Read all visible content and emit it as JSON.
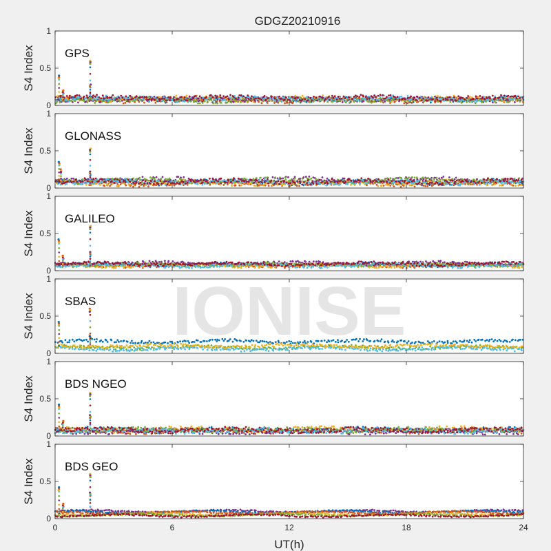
{
  "figure": {
    "title": "GDGZ20210916",
    "xlabel": "UT(h)",
    "ylabel": "S4 Index",
    "watermark": "IONISE",
    "xticks": [
      "0",
      "6",
      "12",
      "18",
      "24"
    ],
    "yticks": [
      "0",
      "0.5",
      "1"
    ]
  },
  "colors": {
    "background": "#f0f0f0",
    "axes_bg": "#ffffff",
    "axis_line": "#262626",
    "series": [
      "#0072BD",
      "#D95319",
      "#EDB120",
      "#7E2F8E",
      "#77AC30",
      "#4DBEEE",
      "#A2142F"
    ]
  },
  "chart_data": [
    {
      "type": "scatter",
      "panel": "GPS",
      "xlim": [
        0,
        24
      ],
      "ylim": [
        0,
        1
      ],
      "baseline": 0.07,
      "spread": 0.03,
      "spikes": [
        {
          "x": 0.2,
          "y": 0.4
        },
        {
          "x": 0.4,
          "y": 0.2
        },
        {
          "x": 1.8,
          "y": 0.6
        },
        {
          "x": 1.8,
          "y": 0.28
        }
      ],
      "series": [
        {
          "level": 0.08,
          "color_index": 0
        },
        {
          "level": 0.07,
          "color_index": 1
        },
        {
          "level": 0.09,
          "color_index": 2
        },
        {
          "level": 0.08,
          "color_index": 3
        },
        {
          "level": 0.07,
          "color_index": 4
        },
        {
          "level": 0.09,
          "color_index": 5
        },
        {
          "level": 0.1,
          "color_index": 6
        }
      ]
    },
    {
      "type": "scatter",
      "panel": "GLONASS",
      "xlim": [
        0,
        24
      ],
      "ylim": [
        0,
        1
      ],
      "baseline": 0.07,
      "spread": 0.03,
      "spikes": [
        {
          "x": 0.2,
          "y": 0.35
        },
        {
          "x": 0.3,
          "y": 0.25
        },
        {
          "x": 1.8,
          "y": 0.53
        },
        {
          "x": 1.8,
          "y": 0.22
        }
      ],
      "series": [
        {
          "level": 0.08,
          "color_index": 0
        },
        {
          "level": 0.06,
          "color_index": 1
        },
        {
          "level": 0.07,
          "color_index": 2
        },
        {
          "level": 0.11,
          "color_index": 3
        },
        {
          "level": 0.1,
          "color_index": 4
        },
        {
          "level": 0.08,
          "color_index": 5
        },
        {
          "level": 0.09,
          "color_index": 6
        }
      ]
    },
    {
      "type": "scatter",
      "panel": "GALILEO",
      "xlim": [
        0,
        24
      ],
      "ylim": [
        0,
        1
      ],
      "baseline": 0.07,
      "spread": 0.02,
      "spikes": [
        {
          "x": 0.2,
          "y": 0.42
        },
        {
          "x": 0.4,
          "y": 0.2
        },
        {
          "x": 1.8,
          "y": 0.6
        },
        {
          "x": 1.8,
          "y": 0.25
        }
      ],
      "series": [
        {
          "level": 0.08,
          "color_index": 0
        },
        {
          "level": 0.07,
          "color_index": 1
        },
        {
          "level": 0.07,
          "color_index": 2
        },
        {
          "level": 0.1,
          "color_index": 3
        },
        {
          "level": 0.08,
          "color_index": 4
        },
        {
          "level": 0.07,
          "color_index": 5
        },
        {
          "level": 0.09,
          "color_index": 6
        }
      ]
    },
    {
      "type": "scatter",
      "panel": "SBAS",
      "xlim": [
        0,
        24
      ],
      "ylim": [
        0,
        1
      ],
      "baseline": 0.1,
      "spread": 0.02,
      "spikes": [
        {
          "x": 0.2,
          "y": 0.42
        },
        {
          "x": 1.8,
          "y": 0.6
        },
        {
          "x": 1.8,
          "y": 0.25
        }
      ],
      "series": [
        {
          "level": 0.16,
          "color_index": 0
        },
        {
          "level": 0.08,
          "color_index": 4
        },
        {
          "level": 0.06,
          "color_index": 5
        },
        {
          "level": 0.1,
          "color_index": 2
        }
      ]
    },
    {
      "type": "scatter",
      "panel": "BDS NGEO",
      "xlim": [
        0,
        24
      ],
      "ylim": [
        0,
        1
      ],
      "baseline": 0.07,
      "spread": 0.03,
      "spikes": [
        {
          "x": 0.2,
          "y": 0.42
        },
        {
          "x": 0.4,
          "y": 0.2
        },
        {
          "x": 1.8,
          "y": 0.58
        },
        {
          "x": 1.8,
          "y": 0.28
        }
      ],
      "series": [
        {
          "level": 0.08,
          "color_index": 0
        },
        {
          "level": 0.07,
          "color_index": 1
        },
        {
          "level": 0.09,
          "color_index": 2
        },
        {
          "level": 0.06,
          "color_index": 3
        },
        {
          "level": 0.08,
          "color_index": 4
        },
        {
          "level": 0.07,
          "color_index": 5
        },
        {
          "level": 0.08,
          "color_index": 6
        }
      ]
    },
    {
      "type": "scatter",
      "panel": "BDS GEO",
      "xlim": [
        0,
        24
      ],
      "ylim": [
        0,
        1
      ],
      "baseline": 0.07,
      "spread": 0.01,
      "spikes": [
        {
          "x": 0.2,
          "y": 0.42
        },
        {
          "x": 0.4,
          "y": 0.2
        },
        {
          "x": 1.8,
          "y": 0.6
        },
        {
          "x": 1.8,
          "y": 0.35
        }
      ],
      "series": [
        {
          "level": 0.1,
          "color_index": 3
        },
        {
          "level": 0.09,
          "color_index": 0
        },
        {
          "level": 0.08,
          "color_index": 1
        },
        {
          "level": 0.06,
          "color_index": 2
        },
        {
          "level": 0.05,
          "color_index": 4
        },
        {
          "level": 0.04,
          "color_index": 6
        }
      ]
    }
  ]
}
